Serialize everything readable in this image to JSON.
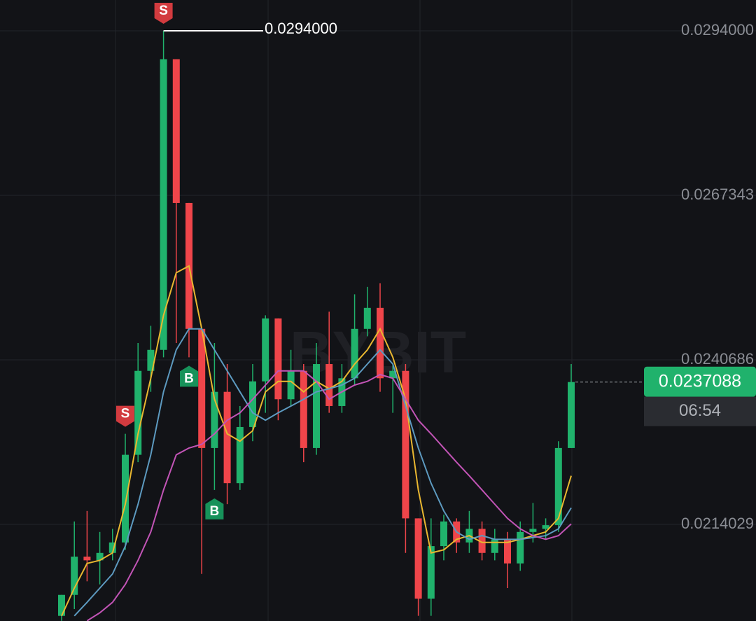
{
  "chart_data": {
    "type": "candlestick",
    "watermark": "BYBIT",
    "ylim": [
      0.019837,
      0.029899
    ],
    "yticks": [
      {
        "value": 0.0294,
        "label": "0.0294000"
      },
      0.0267343,
      0.0240686,
      0.0214029
    ],
    "grid": true,
    "up_color": "#20b26c",
    "down_color": "#ef454a",
    "candles": {
      "open": [
        0.01992,
        0.02026,
        0.02088,
        0.02082,
        0.02094,
        0.02111,
        0.02253,
        0.02389,
        0.02423,
        0.02894,
        0.02661,
        0.02457,
        0.02264,
        0.02355,
        0.02207,
        0.02298,
        0.02372,
        0.02474,
        0.02343,
        0.02389,
        0.02264,
        0.024,
        0.02332,
        0.02377,
        0.02457,
        0.02491,
        0.02377,
        0.02389,
        0.0215,
        0.0202,
        0.02105,
        0.02145,
        0.02111,
        0.02133,
        0.02094,
        0.02116,
        0.02077,
        0.02128,
        0.02133,
        0.02139,
        0.02264
      ],
      "high": [
        0.02026,
        0.02145,
        0.02162,
        0.02128,
        0.02133,
        0.02287,
        0.02434,
        0.02462,
        0.0294,
        0.02894,
        0.02661,
        0.02457,
        0.02434,
        0.024,
        0.02332,
        0.024,
        0.02479,
        0.02474,
        0.02423,
        0.024,
        0.02434,
        0.02485,
        0.024,
        0.02513,
        0.02525,
        0.02531,
        0.024,
        0.024,
        0.0215,
        0.0215,
        0.02156,
        0.0215,
        0.02162,
        0.02145,
        0.02133,
        0.02128,
        0.02145,
        0.02175,
        0.0215,
        0.02275,
        0.024
      ],
      "low": [
        0.01984,
        0.02003,
        0.02048,
        0.02043,
        0.02082,
        0.02099,
        0.02241,
        0.02355,
        0.02411,
        0.02434,
        0.02411,
        0.0206,
        0.02196,
        0.02173,
        0.02196,
        0.02275,
        0.02321,
        0.02309,
        0.02332,
        0.02241,
        0.02253,
        0.02321,
        0.02321,
        0.02366,
        0.02445,
        0.02355,
        0.02321,
        0.02094,
        0.01992,
        0.01992,
        0.02082,
        0.02094,
        0.02094,
        0.02082,
        0.02082,
        0.02037,
        0.02065,
        0.02111,
        0.02116,
        0.02128,
        0.02264
      ],
      "close": [
        0.02026,
        0.02088,
        0.02082,
        0.02094,
        0.02111,
        0.02253,
        0.02389,
        0.02423,
        0.02894,
        0.02661,
        0.02457,
        0.02264,
        0.02355,
        0.02207,
        0.02298,
        0.02372,
        0.02474,
        0.02343,
        0.02389,
        0.02264,
        0.024,
        0.02332,
        0.02377,
        0.02457,
        0.02491,
        0.02377,
        0.02389,
        0.0215,
        0.0202,
        0.02105,
        0.02145,
        0.02111,
        0.02133,
        0.02094,
        0.02116,
        0.02077,
        0.02128,
        0.02133,
        0.02139,
        0.02264,
        0.0237088
      ]
    },
    "series": [
      {
        "color": "#e9b730",
        "values": [
          0.01992,
          0.02037,
          0.02077,
          0.02082,
          0.02094,
          0.02173,
          0.02287,
          0.02377,
          0.02479,
          0.02548,
          0.02559,
          0.02457,
          0.02343,
          0.02287,
          0.02275,
          0.02292,
          0.02355,
          0.02372,
          0.02372,
          0.02355,
          0.02372,
          0.0236,
          0.02372,
          0.024,
          0.02423,
          0.02457,
          0.02411,
          0.02343,
          0.02196,
          0.02094,
          0.02099,
          0.02116,
          0.02122,
          0.02111,
          0.02111,
          0.02111,
          0.02116,
          0.02122,
          0.02128,
          0.0215,
          0.02219
        ]
      },
      {
        "color": "#5d9ac0",
        "values": [
          null,
          0.01992,
          0.02014,
          0.02037,
          0.0206,
          0.02105,
          0.02173,
          0.02253,
          0.02355,
          0.02423,
          0.02457,
          0.02457,
          0.02423,
          0.02389,
          0.02355,
          0.02321,
          0.02309,
          0.02321,
          0.02332,
          0.02343,
          0.02355,
          0.0236,
          0.02366,
          0.02377,
          0.024,
          0.02423,
          0.024,
          0.02332,
          0.02264,
          0.02207,
          0.02162,
          0.02128,
          0.02116,
          0.02122,
          0.02116,
          0.02116,
          0.02116,
          0.02119,
          0.02122,
          0.02133,
          0.02167
        ]
      },
      {
        "color": "#c254b6",
        "values": [
          null,
          null,
          0.01984,
          0.01997,
          0.02014,
          0.02043,
          0.02082,
          0.02128,
          0.02196,
          0.02253,
          0.02264,
          0.0227,
          0.02287,
          0.02309,
          0.02321,
          0.02343,
          0.02366,
          0.02389,
          0.02389,
          0.02389,
          0.02372,
          0.02343,
          0.02355,
          0.02366,
          0.02372,
          0.02383,
          0.02377,
          0.02343,
          0.02309,
          0.02287,
          0.02264,
          0.02241,
          0.02219,
          0.02196,
          0.02173,
          0.0215,
          0.02133,
          0.02122,
          0.02116,
          0.02122,
          0.02141
        ]
      }
    ],
    "signals": [
      {
        "label": "S",
        "index": 8,
        "color": "#d23b3f"
      },
      {
        "label": "S",
        "index": 5,
        "color": "#d23b3f"
      },
      {
        "label": "B",
        "index": 10,
        "color": "#17925a"
      },
      {
        "label": "B",
        "index": 12,
        "color": "#17925a"
      }
    ],
    "high_marker": {
      "value": 0.0294,
      "label": "0.0294000",
      "index": 8
    },
    "last_price": {
      "value": 0.0237088,
      "label": "0.0237088",
      "countdown": "06:54"
    }
  }
}
